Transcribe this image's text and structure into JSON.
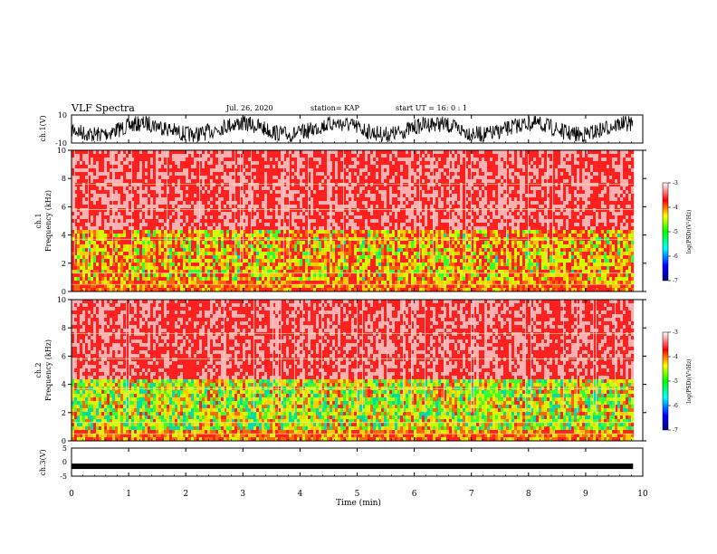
{
  "header": {
    "title": "VLF Spectra",
    "date": "Jul. 26, 2020",
    "station": "station= KAP",
    "start_ut": "start  UT =   16: 0  : 1"
  },
  "chart_data": [
    {
      "type": "line",
      "panel": "ch1-waveform",
      "ylabel": "ch.1(V)",
      "yticks": [
        "10",
        "-10"
      ],
      "ylim": [
        -10,
        10
      ]
    },
    {
      "type": "heatmap",
      "panel": "ch1-spectrogram",
      "ylabel_line1": "ch.1",
      "ylabel_line2": "Frequency (kHz)",
      "yticks": [
        "0",
        "2",
        "4",
        "6",
        "8",
        "10"
      ],
      "ylim": [
        0,
        10
      ],
      "colorbar": {
        "label": "log(PSD)(V²/Hz)",
        "ticks": [
          "-3",
          "-4",
          "-5",
          "-6",
          "-7"
        ],
        "range": [
          -7,
          -3
        ]
      }
    },
    {
      "type": "heatmap",
      "panel": "ch2-spectrogram",
      "ylabel_line1": "ch.2",
      "ylabel_line2": "Frequency (kHz)",
      "yticks": [
        "0",
        "2",
        "4",
        "6",
        "8",
        "10"
      ],
      "ylim": [
        0,
        10
      ],
      "colorbar": {
        "label": "log(PSD)(V²/Hz)",
        "ticks": [
          "-3",
          "-4",
          "-5",
          "-6",
          "-7"
        ],
        "range": [
          -7,
          -3
        ]
      }
    },
    {
      "type": "line",
      "panel": "ch3-waveform",
      "ylabel": "ch.3(V)",
      "yticks": [
        "5",
        "0",
        "-5"
      ],
      "ylim": [
        -5,
        5
      ],
      "level": -1.5
    }
  ],
  "xaxis": {
    "label": "Time (min)",
    "ticks": [
      "0",
      "1",
      "2",
      "3",
      "4",
      "5",
      "6",
      "7",
      "8",
      "9",
      "10"
    ],
    "xlim": [
      0,
      10
    ]
  }
}
